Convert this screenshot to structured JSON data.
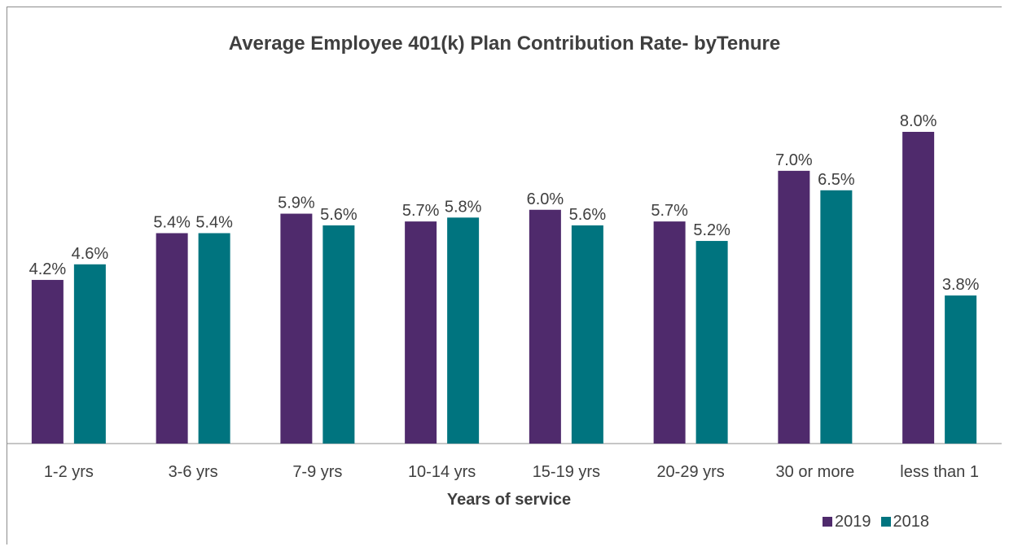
{
  "chart_data": {
    "type": "bar",
    "title": "Average Employee 401(k) Plan Contribution Rate- byTenure",
    "xlabel": "Years of service",
    "ylabel": "",
    "categories": [
      "1-2 yrs",
      "3-6 yrs",
      "7-9 yrs",
      "10-14 yrs",
      "15-19 yrs",
      "20-29 yrs",
      "30 or more",
      "less than 1"
    ],
    "series": [
      {
        "name": "2019",
        "color": "#4f2a6c",
        "values": [
          4.2,
          5.4,
          5.9,
          5.7,
          6.0,
          5.7,
          7.0,
          8.0
        ],
        "labels": [
          "4.2%",
          "5.4%",
          "5.9%",
          "5.7%",
          "6.0%",
          "5.7%",
          "7.0%",
          "8.0%"
        ]
      },
      {
        "name": "2018",
        "color": "#00747f",
        "values": [
          4.6,
          5.4,
          5.6,
          5.8,
          5.6,
          5.2,
          6.5,
          3.8
        ],
        "labels": [
          "4.6%",
          "5.4%",
          "5.6%",
          "5.8%",
          "5.6%",
          "5.2%",
          "6.5%",
          "3.8%"
        ]
      }
    ],
    "ylim": [
      0,
      8.0
    ],
    "grid": false,
    "legend_position": "bottom-right"
  }
}
